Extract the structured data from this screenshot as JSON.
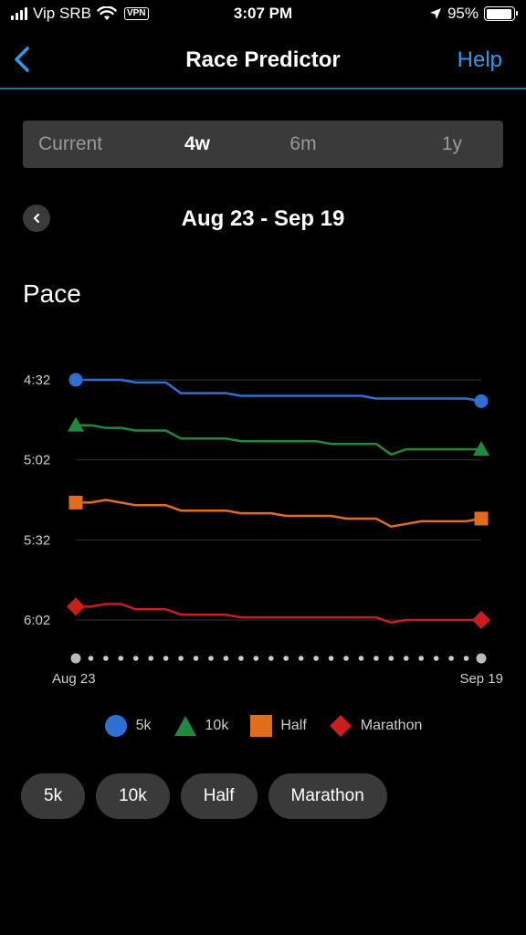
{
  "status": {
    "carrier": "Vip SRB",
    "vpn": "VPN",
    "time": "3:07 PM",
    "battery": "95%",
    "battery_level": 0.95,
    "icons": [
      "signal-icon",
      "wifi-icon",
      "location-arrow-icon",
      "battery-icon"
    ]
  },
  "nav": {
    "back_icon": "chevron-left-icon",
    "title": "Race Predictor",
    "help": "Help"
  },
  "tabs": {
    "items": [
      "Current",
      "4w",
      "6m",
      "1y"
    ],
    "selected": "4w"
  },
  "date": {
    "prev_icon": "chevron-left-icon",
    "range": "Aug 23 - Sep 19"
  },
  "section": {
    "title": "Pace"
  },
  "chart_data": {
    "type": "line",
    "title": "Pace",
    "x_labels": {
      "start": "Aug 23",
      "end": "Sep 19"
    },
    "y_ticks": [
      "4:32",
      "5:02",
      "5:32",
      "6:02"
    ],
    "y_tick_seconds": [
      272,
      302,
      332,
      362
    ],
    "y_axis_inverted": true,
    "grid": true,
    "legend": "bottom",
    "x": [
      1,
      2,
      3,
      4,
      5,
      6,
      7,
      8,
      9,
      10,
      11,
      12,
      13,
      14,
      15,
      16,
      17,
      18,
      19,
      20,
      21,
      22,
      23,
      24,
      25,
      26,
      27,
      28
    ],
    "series": [
      {
        "name": "5k",
        "color": "#2f6fd3",
        "marker": "circle",
        "values": [
          272,
          272,
          272,
          272,
          273,
          273,
          273,
          277,
          277,
          277,
          277,
          278,
          278,
          278,
          278,
          278,
          278,
          278,
          278,
          278,
          279,
          279,
          279,
          279,
          279,
          279,
          279,
          280
        ]
      },
      {
        "name": "10k",
        "color": "#1f8a3c",
        "marker": "triangle",
        "values": [
          289,
          289,
          290,
          290,
          291,
          291,
          291,
          294,
          294,
          294,
          294,
          295,
          295,
          295,
          295,
          295,
          295,
          296,
          296,
          296,
          296,
          300,
          298,
          298,
          298,
          298,
          298,
          298
        ]
      },
      {
        "name": "Half",
        "color": "#e36b1c",
        "marker": "square",
        "values": [
          318,
          318,
          317,
          318,
          319,
          319,
          319,
          321,
          321,
          321,
          321,
          322,
          322,
          322,
          323,
          323,
          323,
          323,
          324,
          324,
          324,
          327,
          326,
          325,
          325,
          325,
          325,
          324
        ]
      },
      {
        "name": "Marathon",
        "color": "#c81e1e",
        "marker": "diamond",
        "values": [
          357,
          357,
          356,
          356,
          358,
          358,
          358,
          360,
          360,
          360,
          360,
          361,
          361,
          361,
          361,
          361,
          361,
          361,
          361,
          361,
          361,
          363,
          362,
          362,
          362,
          362,
          362,
          362
        ]
      }
    ]
  },
  "legend": [
    {
      "label": "5k",
      "color": "#2f6fd3",
      "marker": "circle"
    },
    {
      "label": "10k",
      "color": "#1f8a3c",
      "marker": "triangle"
    },
    {
      "label": "Half",
      "color": "#e36b1c",
      "marker": "square"
    },
    {
      "label": "Marathon",
      "color": "#c81e1e",
      "marker": "diamond"
    }
  ],
  "chips": [
    "5k",
    "10k",
    "Half",
    "Marathon"
  ]
}
